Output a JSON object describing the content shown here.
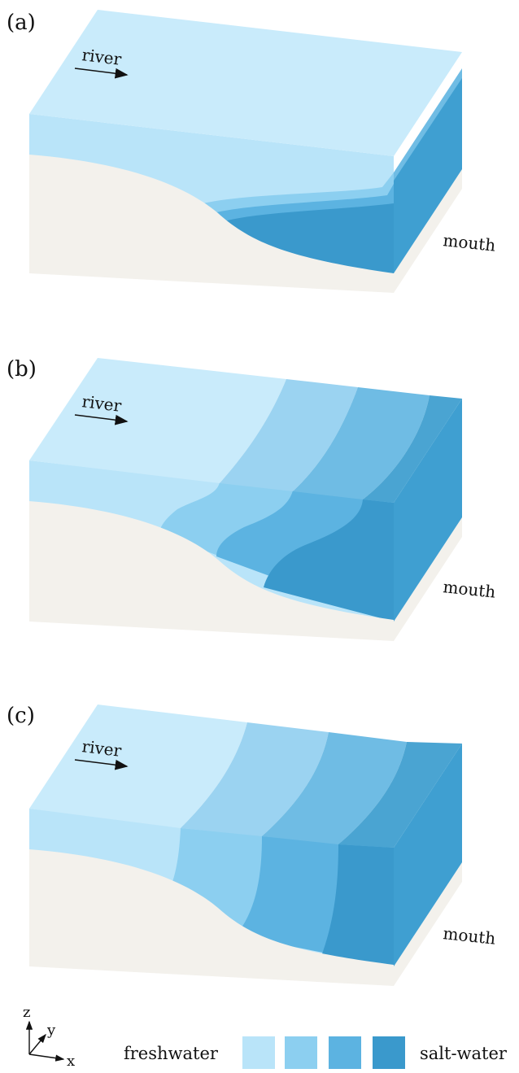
{
  "panels": [
    {
      "id": "a",
      "tag": "(a)",
      "river_label": "river",
      "mouth_label": "mouth"
    },
    {
      "id": "b",
      "tag": "(b)",
      "river_label": "river",
      "mouth_label": "mouth"
    },
    {
      "id": "c",
      "tag": "(c)",
      "river_label": "river",
      "mouth_label": "mouth"
    }
  ],
  "legend": {
    "left_label": "freshwater",
    "right_label": "salt-water",
    "swatch_colors": [
      "#b9e4f9",
      "#8ccff0",
      "#5cb3e1",
      "#3a99cc"
    ]
  },
  "axes": {
    "z": "z",
    "y": "y",
    "x": "x"
  },
  "colors": {
    "fresh_top": "#c9ebfb",
    "fresh_front": "#b9e4f9",
    "layer2_top": "#9bd3f1",
    "layer2_front": "#8ccff0",
    "layer3_top": "#6fbce4",
    "layer3_front": "#5cb3e1",
    "salt_top": "#4aa4d2",
    "salt_front": "#3a99cc",
    "side_face": "#3f9fd1",
    "sediment": "#f3f1ec"
  }
}
